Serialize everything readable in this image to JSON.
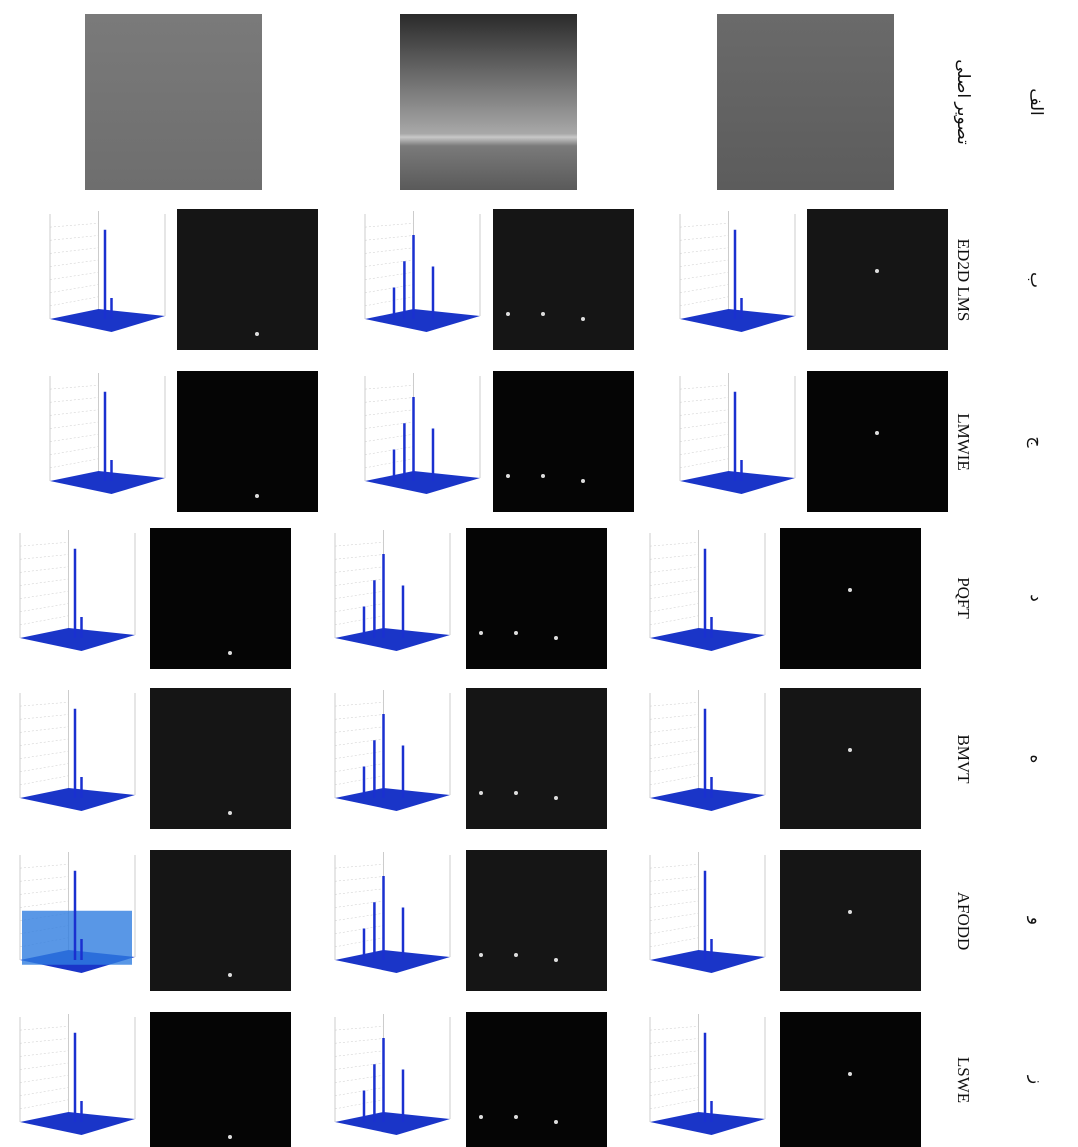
{
  "figure": {
    "rows": [
      {
        "letter": "الف",
        "method": "تصویر اصلی"
      },
      {
        "letter": "ب",
        "method": "ED2D LMS"
      },
      {
        "letter": "ج",
        "method": "LMWIE"
      },
      {
        "letter": "د",
        "method": "PQFT"
      },
      {
        "letter": "ه",
        "method": "BMVT"
      },
      {
        "letter": "و",
        "method": "AFODD"
      },
      {
        "letter": "ز",
        "method": "LSWE"
      }
    ]
  }
}
